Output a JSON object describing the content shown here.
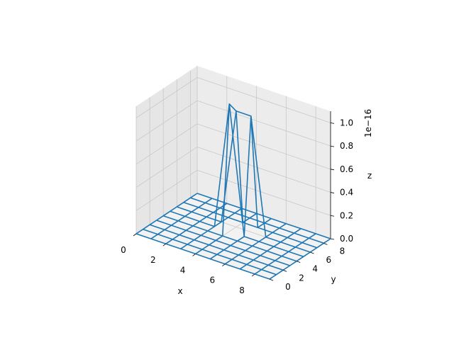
{
  "chart_data": {
    "type": "wireframe_3d",
    "xlabel": "x",
    "ylabel": "y",
    "zlabel": "z",
    "z_offset_label": "1e−16",
    "x_ticks": [
      0,
      2,
      4,
      6,
      8
    ],
    "y_ticks": [
      0,
      2,
      4,
      6,
      8
    ],
    "z_ticks": [
      0.0,
      0.2,
      0.4,
      0.6,
      0.8,
      1.0
    ],
    "x_tick_labels": [
      "0",
      "2",
      "4",
      "6",
      "8"
    ],
    "y_tick_labels": [
      "0",
      "2",
      "4",
      "6",
      "8"
    ],
    "z_tick_labels": [
      "0.0",
      "0.2",
      "0.4",
      "0.6",
      "0.8",
      "1.0"
    ],
    "xlim": [
      0,
      9
    ],
    "ylim": [
      0,
      9
    ],
    "zlim": [
      0,
      1.1
    ],
    "grid": true,
    "line_color": "#1f77b4",
    "grid_x": [
      0,
      1,
      2,
      3,
      4,
      5,
      6,
      7,
      8,
      9
    ],
    "grid_y": [
      0,
      1,
      2,
      3,
      4,
      5,
      6,
      7,
      8,
      9
    ],
    "peaks": [
      {
        "x": 4,
        "y": 5,
        "z": 1.1
      },
      {
        "x": 4,
        "y": 6,
        "z": 1.0
      },
      {
        "x": 5,
        "y": 6,
        "z": 1.0
      }
    ]
  }
}
